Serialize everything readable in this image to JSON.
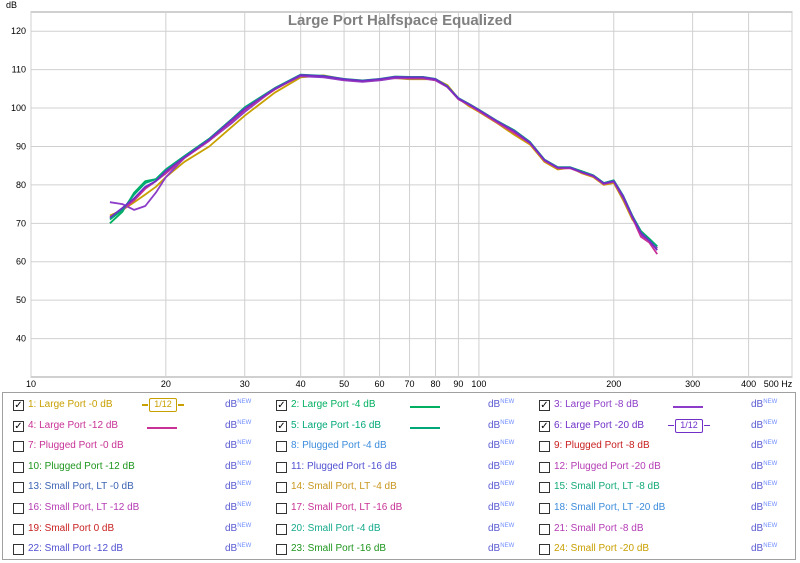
{
  "chart_data": {
    "type": "line",
    "title": "Large Port Halfspace Equalized",
    "y_unit_label": "dB",
    "x_unit_label": "Hz",
    "x_scale": "log",
    "xlim": [
      10,
      500
    ],
    "ylim": [
      30,
      125
    ],
    "grid": true,
    "x_ticks": [
      {
        "value": 10,
        "label": "10"
      },
      {
        "value": 20,
        "label": "20"
      },
      {
        "value": 30,
        "label": "30"
      },
      {
        "value": 40,
        "label": "40"
      },
      {
        "value": 50,
        "label": "50"
      },
      {
        "value": 60,
        "label": "60"
      },
      {
        "value": 70,
        "label": "70"
      },
      {
        "value": 80,
        "label": "80"
      },
      {
        "value": 90,
        "label": "90"
      },
      {
        "value": 100,
        "label": "100"
      },
      {
        "value": 200,
        "label": "200"
      },
      {
        "value": 300,
        "label": "300"
      },
      {
        "value": 400,
        "label": "400"
      },
      {
        "value": 500,
        "label": "500 Hz"
      }
    ],
    "y_ticks": [
      40,
      50,
      60,
      70,
      80,
      90,
      100,
      110,
      120
    ],
    "series": [
      {
        "name": "1: Large Port -0 dB",
        "color": "#c8a000",
        "x": [
          15,
          16,
          17,
          18,
          19,
          20,
          22,
          25,
          28,
          30,
          35,
          40,
          45,
          50,
          55,
          60,
          65,
          70,
          75,
          80,
          85,
          90,
          95,
          100,
          110,
          120,
          130,
          140,
          150,
          160,
          170,
          180,
          190,
          200,
          210,
          220,
          230,
          240,
          250
        ],
        "y": [
          72,
          73.5,
          75.5,
          77.5,
          79.5,
          82,
          86,
          90,
          95,
          98,
          104,
          108,
          108.5,
          107.5,
          107,
          107.5,
          107.8,
          107.5,
          107.5,
          107.5,
          106,
          102.5,
          100.5,
          99,
          96,
          93,
          90.5,
          86,
          84,
          84.5,
          83,
          82,
          80,
          80.5,
          76,
          71,
          68,
          66,
          63.5
        ]
      },
      {
        "name": "2: Large Port -4 dB",
        "color": "#00b060",
        "x": [
          15,
          16,
          17,
          18,
          19,
          20,
          22,
          25,
          28,
          30,
          35,
          40,
          45,
          50,
          55,
          60,
          65,
          70,
          75,
          80,
          85,
          90,
          95,
          100,
          110,
          120,
          130,
          140,
          150,
          160,
          170,
          180,
          190,
          200,
          210,
          220,
          230,
          240,
          250
        ],
        "y": [
          70,
          73,
          78,
          81,
          81.5,
          84,
          87.5,
          92,
          97,
          100,
          105,
          108.5,
          108.2,
          107.5,
          107,
          107.5,
          108,
          108,
          108,
          107.5,
          105.5,
          102.5,
          101,
          99.5,
          96.5,
          94,
          91,
          86.5,
          84.5,
          84.5,
          83.5,
          82.5,
          80.5,
          81,
          77,
          72,
          67,
          66,
          64
        ]
      },
      {
        "name": "3: Large Port -8 dB",
        "color": "#8c3cc8",
        "x": [
          15,
          16,
          17,
          18,
          19,
          20,
          22,
          25,
          28,
          30,
          35,
          40,
          45,
          50,
          55,
          60,
          65,
          70,
          75,
          80,
          85,
          90,
          95,
          100,
          110,
          120,
          130,
          140,
          150,
          160,
          170,
          180,
          190,
          200,
          210,
          220,
          230,
          240,
          250
        ],
        "y": [
          75.5,
          75,
          73.5,
          74.5,
          78,
          82,
          87,
          91.5,
          96,
          99,
          105,
          108.3,
          108,
          107.2,
          106.8,
          107.2,
          107.8,
          107.7,
          107.7,
          107.2,
          105.5,
          102.3,
          100.8,
          99.3,
          96.3,
          93.5,
          91,
          86.5,
          84.5,
          84.5,
          83.2,
          82.3,
          80.3,
          80.8,
          76.5,
          71.5,
          67,
          65.5,
          63.5
        ]
      },
      {
        "name": "4: Large Port -12 dB",
        "color": "#c83296",
        "x": [
          15,
          16,
          17,
          18,
          19,
          20,
          22,
          25,
          28,
          30,
          35,
          40,
          45,
          50,
          55,
          60,
          65,
          70,
          75,
          80,
          85,
          90,
          95,
          100,
          110,
          120,
          130,
          140,
          150,
          160,
          170,
          180,
          190,
          200,
          210,
          220,
          230,
          240,
          250
        ],
        "y": [
          71.5,
          73.5,
          76,
          79,
          81,
          83,
          87,
          91.5,
          96.5,
          99.5,
          104.8,
          108.5,
          108.3,
          107.4,
          107,
          107.4,
          108,
          107.8,
          107.8,
          107.3,
          105.5,
          102.3,
          100.8,
          99.2,
          96.2,
          93.5,
          90.8,
          86.3,
          84.3,
          84.3,
          83.2,
          82.2,
          80.2,
          80.8,
          76.8,
          71.5,
          66.5,
          65,
          62
        ]
      },
      {
        "name": "5: Large Port -16 dB",
        "color": "#00a878",
        "x": [
          15,
          16,
          17,
          18,
          19,
          20,
          22,
          25,
          28,
          30,
          35,
          40,
          45,
          50,
          55,
          60,
          65,
          70,
          75,
          80,
          85,
          90,
          95,
          100,
          110,
          120,
          130,
          140,
          150,
          160,
          170,
          180,
          190,
          200,
          210,
          220,
          230,
          240,
          250
        ],
        "y": [
          71,
          73.5,
          77.5,
          80.5,
          81.5,
          84,
          87.5,
          92,
          97,
          100.2,
          105.2,
          108.7,
          108.4,
          107.6,
          107.2,
          107.6,
          108.2,
          108.1,
          108.1,
          107.6,
          105.7,
          102.6,
          101.1,
          99.6,
          96.6,
          94.2,
          91.2,
          86.6,
          84.6,
          84.6,
          83.5,
          82.5,
          80.5,
          81.2,
          77.2,
          72,
          68,
          66,
          64
        ]
      },
      {
        "name": "6: Large Port -20 dB",
        "color": "#7030c8",
        "x": [
          15,
          16,
          17,
          18,
          19,
          20,
          22,
          25,
          28,
          30,
          35,
          40,
          45,
          50,
          55,
          60,
          65,
          70,
          75,
          80,
          85,
          90,
          95,
          100,
          110,
          120,
          130,
          140,
          150,
          160,
          170,
          180,
          190,
          200,
          210,
          220,
          230,
          240,
          250
        ],
        "y": [
          71.5,
          74,
          76.5,
          79.5,
          81,
          83.5,
          87.2,
          91.8,
          96.8,
          99.8,
          105,
          108.6,
          108.3,
          107.5,
          107.1,
          107.5,
          108.1,
          108,
          108,
          107.5,
          105.6,
          102.5,
          101,
          99.5,
          96.5,
          94,
          91,
          86.5,
          84.5,
          84.5,
          83.3,
          82.4,
          80.4,
          81,
          77,
          71.8,
          67.5,
          65.5,
          63
        ]
      }
    ]
  },
  "legend": {
    "rows": [
      [
        {
          "label": "1: Large Port -0 dB",
          "color": "#c8a000",
          "checked": true,
          "indicator": "smooth",
          "smooth_text": "1/12",
          "unit": "dB",
          "unit_sup": "NEW"
        },
        {
          "label": "2: Large Port -4 dB",
          "color": "#00b060",
          "checked": true,
          "indicator": "line",
          "unit": "dB",
          "unit_sup": "NEW"
        },
        {
          "label": "3: Large Port -8 dB",
          "color": "#8c3cc8",
          "checked": true,
          "indicator": "line",
          "unit": "dB",
          "unit_sup": "NEW"
        }
      ],
      [
        {
          "label": "4: Large Port -12 dB",
          "color": "#c83296",
          "checked": true,
          "indicator": "line",
          "unit": "dB",
          "unit_sup": "NEW"
        },
        {
          "label": "5: Large Port -16 dB",
          "color": "#00a878",
          "checked": true,
          "indicator": "line",
          "unit": "dB",
          "unit_sup": "NEW"
        },
        {
          "label": "6: Large Port -20 dB",
          "color": "#7030c8",
          "checked": true,
          "indicator": "smooth",
          "smooth_text": "1/12",
          "unit": "dB",
          "unit_sup": "NEW"
        }
      ],
      [
        {
          "label": "7: Plugged Port -0 dB",
          "color": "#c83296",
          "checked": false,
          "indicator": "none",
          "unit": "dB",
          "unit_sup": "NEW"
        },
        {
          "label": "8: Plugged Port -4 dB",
          "color": "#3c8cdc",
          "checked": false,
          "indicator": "none",
          "unit": "dB",
          "unit_sup": "NEW"
        },
        {
          "label": "9: Plugged Port -8 dB",
          "color": "#c81e1e",
          "checked": false,
          "indicator": "none",
          "unit": "dB",
          "unit_sup": "NEW"
        }
      ],
      [
        {
          "label": "10: Plugged Port -12 dB",
          "color": "#1e961e",
          "checked": false,
          "indicator": "none",
          "unit": "dB",
          "unit_sup": "NEW"
        },
        {
          "label": "11: Plugged Port -16 dB",
          "color": "#5050d2",
          "checked": false,
          "indicator": "none",
          "unit": "dB",
          "unit_sup": "NEW"
        },
        {
          "label": "12: Plugged Port -20 dB",
          "color": "#b43cb4",
          "checked": false,
          "indicator": "none",
          "unit": "dB",
          "unit_sup": "NEW"
        }
      ],
      [
        {
          "label": "13: Small Port, LT -0 dB",
          "color": "#3c64b4",
          "checked": false,
          "indicator": "none",
          "unit": "dB",
          "unit_sup": "NEW"
        },
        {
          "label": "14: Small Port, LT -4 dB",
          "color": "#c8961e",
          "checked": false,
          "indicator": "none",
          "unit": "dB",
          "unit_sup": "NEW"
        },
        {
          "label": "15: Small Port, LT -8 dB",
          "color": "#14aa78",
          "checked": false,
          "indicator": "none",
          "unit": "dB",
          "unit_sup": "NEW"
        }
      ],
      [
        {
          "label": "16: Small Port, LT -12 dB",
          "color": "#b43cb4",
          "checked": false,
          "indicator": "none",
          "unit": "dB",
          "unit_sup": "NEW"
        },
        {
          "label": "17: Small Port, LT -16 dB",
          "color": "#c83296",
          "checked": false,
          "indicator": "none",
          "unit": "dB",
          "unit_sup": "NEW"
        },
        {
          "label": "18: Small Port, LT -20 dB",
          "color": "#3c8cdc",
          "checked": false,
          "indicator": "none",
          "unit": "dB",
          "unit_sup": "NEW"
        }
      ],
      [
        {
          "label": "19: Small Port 0 dB",
          "color": "#c81e1e",
          "checked": false,
          "indicator": "none",
          "unit": "dB",
          "unit_sup": "NEW"
        },
        {
          "label": "20: Small Port -4 dB",
          "color": "#14aa8c",
          "checked": false,
          "indicator": "none",
          "unit": "dB",
          "unit_sup": "NEW"
        },
        {
          "label": "21: Small Port -8 dB",
          "color": "#b43cb4",
          "checked": false,
          "indicator": "none",
          "unit": "dB",
          "unit_sup": "NEW"
        }
      ],
      [
        {
          "label": "22: Small Port -12 dB",
          "color": "#5050d2",
          "checked": false,
          "indicator": "none",
          "unit": "dB",
          "unit_sup": "NEW"
        },
        {
          "label": "23: Small Port -16 dB",
          "color": "#1e961e",
          "checked": false,
          "indicator": "none",
          "unit": "dB",
          "unit_sup": "NEW"
        },
        {
          "label": "24: Small Port -20 dB",
          "color": "#c8a000",
          "checked": false,
          "indicator": "none",
          "unit": "dB",
          "unit_sup": "NEW"
        }
      ]
    ],
    "unit_color": "#5a5ad2",
    "unit_sup_color": "#6e8cff"
  }
}
